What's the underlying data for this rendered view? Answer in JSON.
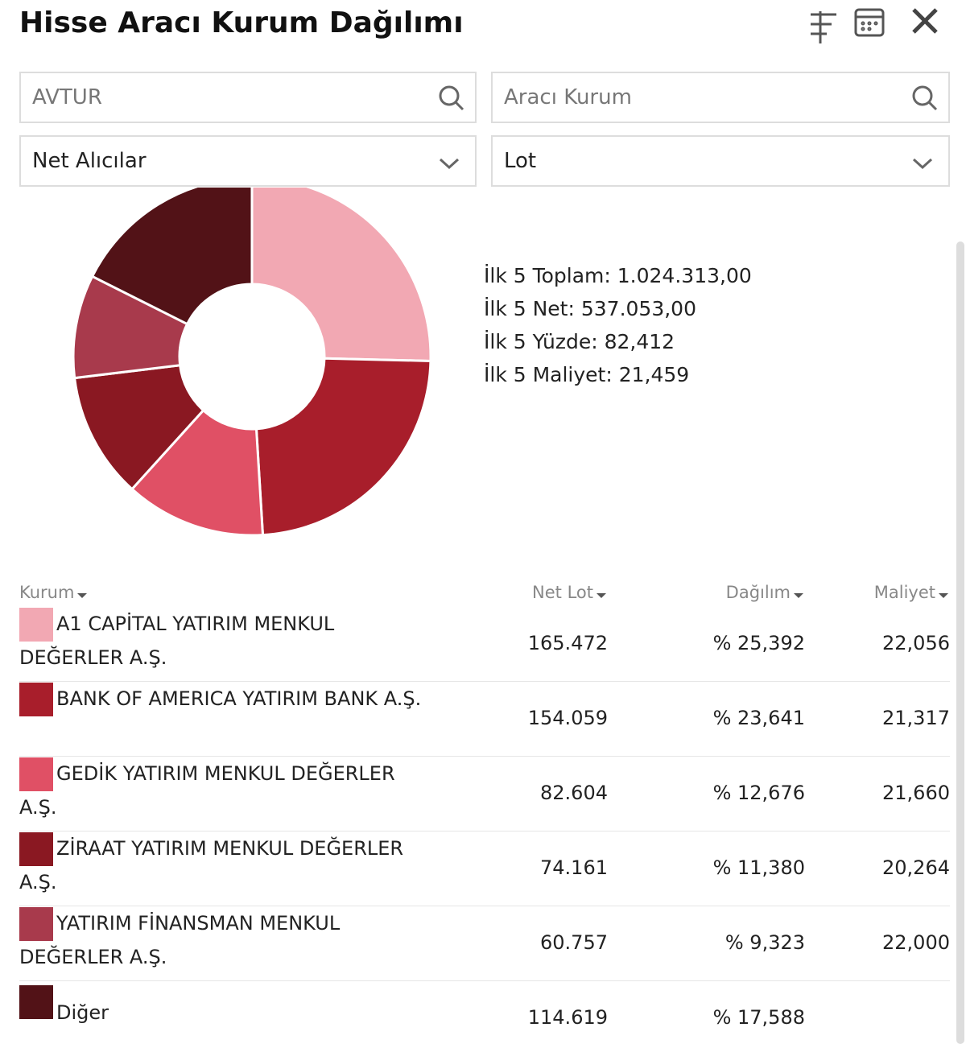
{
  "header": {
    "title": "Hisse Aracı Kurum Dağılımı"
  },
  "filters": {
    "symbol": "AVTUR",
    "broker_placeholder": "Aracı Kurum",
    "side": "Net Alıcılar",
    "unit": "Lot"
  },
  "summary": [
    "İlk 5 Toplam: 1.024.313,00",
    "İlk 5 Net: 537.053,00",
    "İlk 5 Yüzde: 82,412",
    "İlk 5 Maliyet: 21,459"
  ],
  "donut": {
    "values": [
      25.392,
      23.641,
      12.676,
      11.38,
      9.323,
      17.588
    ],
    "colors": [
      "#f2a8b3",
      "#a81e2b",
      "#e05065",
      "#8a1822",
      "#a83a4c",
      "#521217"
    ]
  },
  "table": {
    "columns": [
      "Kurum",
      "Net Lot",
      "Dağılım",
      "Maliyet"
    ],
    "rows": [
      [
        "A1 CAPİTAL YATIRIM MENKUL DEĞERLER A.Ş.",
        "165.472",
        "% 25,392",
        "22,056"
      ],
      [
        "BANK OF AMERICA YATIRIM BANK A.Ş.",
        "154.059",
        "% 23,641",
        "21,317"
      ],
      [
        "GEDİK YATIRIM MENKUL DEĞERLER A.Ş.",
        "82.604",
        "% 12,676",
        "21,660"
      ],
      [
        "ZİRAAT YATIRIM MENKUL DEĞERLER A.Ş.",
        "74.161",
        "% 11,380",
        "20,264"
      ],
      [
        "YATIRIM FİNANSMAN MENKUL DEĞERLER A.Ş.",
        "60.757",
        "% 9,323",
        "22,000"
      ],
      [
        "Diğer",
        "114.619",
        "% 17,588"
      ]
    ]
  }
}
